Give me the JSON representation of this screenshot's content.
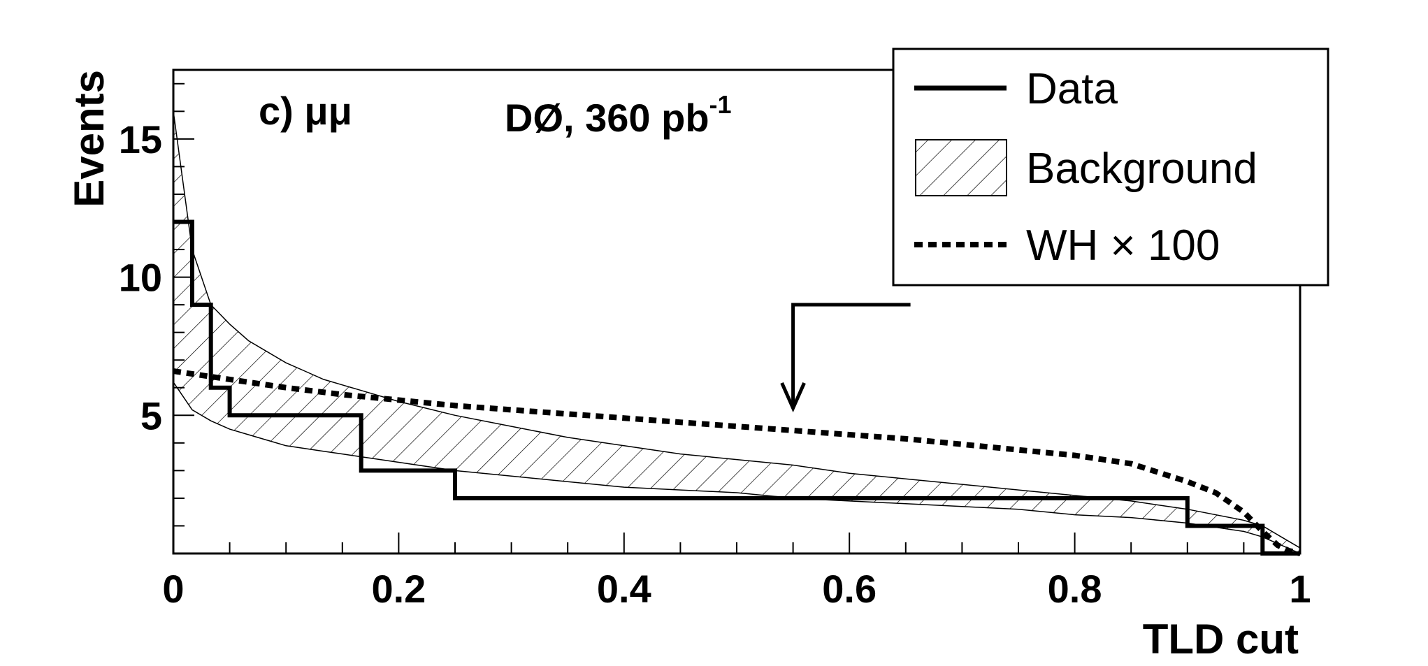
{
  "chart_data": {
    "type": "line",
    "panel_label": "c) μμ",
    "experiment_label": "DØ, 360 pb",
    "experiment_superscript": "-1",
    "xlabel": "TLD cut",
    "ylabel": "Events",
    "xlim": [
      0,
      1
    ],
    "ylim": [
      0,
      17.5
    ],
    "x_ticks": [
      "0",
      "0.2",
      "0.4",
      "0.6",
      "0.8",
      "1"
    ],
    "y_ticks": [
      "5",
      "10",
      "15"
    ],
    "arrow_at_x": 0.55,
    "legend_position": "top-right",
    "legend": {
      "data_label": "Data",
      "background_label": "Background",
      "signal_label": "WH × 100"
    },
    "series": [
      {
        "name": "Data",
        "style": "solid-step",
        "bin_edges": [
          0,
          0.0167,
          0.0333,
          0.05,
          0.1667,
          0.25,
          0.9,
          0.9667,
          1.0
        ],
        "values": [
          12,
          9,
          6,
          5,
          3,
          2,
          1,
          0
        ]
      },
      {
        "name": "Background",
        "style": "hatched-band",
        "x": [
          0,
          0.0167,
          0.0333,
          0.05,
          0.0667,
          0.0833,
          0.1,
          0.1167,
          0.1333,
          0.15,
          0.1667,
          0.2,
          0.25,
          0.3,
          0.35,
          0.4,
          0.45,
          0.5,
          0.55,
          0.6,
          0.65,
          0.7,
          0.75,
          0.8,
          0.85,
          0.9,
          0.95,
          0.9667,
          0.9833,
          1.0
        ],
        "upper": [
          16,
          11,
          9,
          8.3,
          7.7,
          7.3,
          6.9,
          6.6,
          6.3,
          6.1,
          5.9,
          5.5,
          5.0,
          4.6,
          4.2,
          3.9,
          3.6,
          3.4,
          3.2,
          2.9,
          2.7,
          2.5,
          2.3,
          2.1,
          1.9,
          1.6,
          1.2,
          1.0,
          0.6,
          0.2
        ],
        "lower": [
          6.2,
          5.2,
          4.8,
          4.5,
          4.3,
          4.1,
          3.9,
          3.8,
          3.7,
          3.6,
          3.5,
          3.3,
          3.0,
          2.8,
          2.6,
          2.4,
          2.3,
          2.2,
          2.0,
          1.9,
          1.8,
          1.7,
          1.6,
          1.4,
          1.3,
          1.1,
          0.8,
          0.6,
          0.3,
          0.0
        ]
      },
      {
        "name": "WH × 100",
        "style": "dashed",
        "x": [
          0,
          0.05,
          0.1,
          0.15,
          0.2,
          0.25,
          0.3,
          0.35,
          0.4,
          0.45,
          0.5,
          0.55,
          0.6,
          0.65,
          0.7,
          0.75,
          0.8,
          0.85,
          0.9,
          0.925,
          0.95,
          0.9667,
          0.98,
          0.99,
          1.0
        ],
        "y": [
          6.6,
          6.3,
          6.0,
          5.75,
          5.55,
          5.35,
          5.2,
          5.05,
          4.9,
          4.75,
          4.6,
          4.45,
          4.3,
          4.15,
          3.95,
          3.75,
          3.55,
          3.25,
          2.6,
          2.2,
          1.5,
          0.8,
          0.3,
          0.1,
          0.0
        ]
      }
    ]
  }
}
